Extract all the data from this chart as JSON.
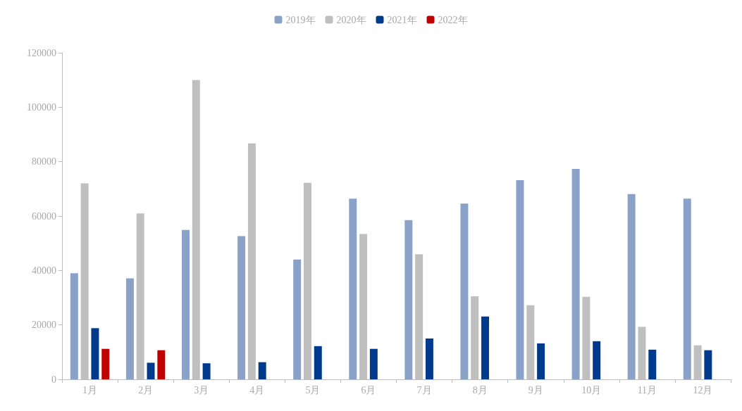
{
  "chart_data": {
    "type": "bar",
    "categories": [
      "1月",
      "2月",
      "3月",
      "4月",
      "5月",
      "6月",
      "7月",
      "8月",
      "9月",
      "10月",
      "11月",
      "12月"
    ],
    "series": [
      {
        "name": "2019年",
        "color": "#8aa2c8",
        "values": [
          39000,
          37100,
          54900,
          52600,
          44000,
          66400,
          58500,
          64600,
          73200,
          77300,
          68100,
          66400
        ]
      },
      {
        "name": "2020年",
        "color": "#bfbfbf",
        "values": [
          72000,
          61000,
          110000,
          86700,
          72200,
          53400,
          46000,
          30500,
          27200,
          30300,
          19300,
          12500
        ]
      },
      {
        "name": "2021年",
        "color": "#003a8c",
        "values": [
          18800,
          6100,
          5900,
          6300,
          12200,
          11200,
          15000,
          23100,
          13200,
          14000,
          10900,
          10700
        ]
      },
      {
        "name": "2022年",
        "color": "#c00000",
        "values": [
          11200,
          10700,
          null,
          null,
          null,
          null,
          null,
          null,
          null,
          null,
          null,
          null
        ]
      }
    ],
    "ylim": [
      0,
      120000
    ],
    "yticks": [
      0,
      20000,
      40000,
      60000,
      80000,
      100000,
      120000
    ],
    "grid": false,
    "legend": "top"
  }
}
